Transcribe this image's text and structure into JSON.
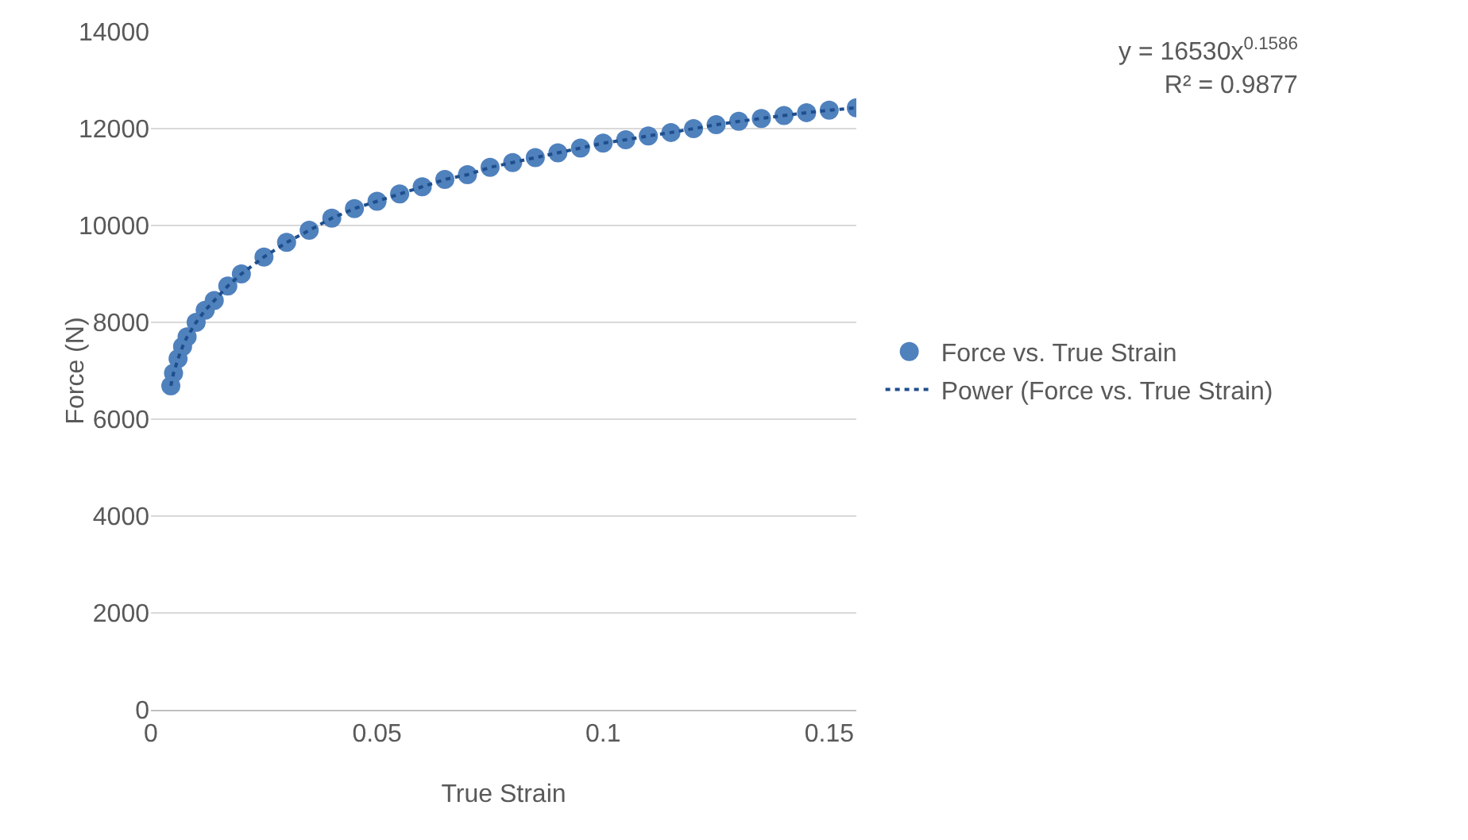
{
  "chart_data": {
    "type": "scatter",
    "xlabel": "True Strain",
    "ylabel": "Force (N)",
    "x": [
      0.0044,
      0.005,
      0.006,
      0.007,
      0.008,
      0.01,
      0.012,
      0.014,
      0.017,
      0.02,
      0.025,
      0.03,
      0.035,
      0.04,
      0.045,
      0.05,
      0.055,
      0.06,
      0.065,
      0.07,
      0.075,
      0.08,
      0.085,
      0.09,
      0.095,
      0.1,
      0.105,
      0.11,
      0.115,
      0.12,
      0.125,
      0.13,
      0.135,
      0.14,
      0.145,
      0.15,
      0.156
    ],
    "series": [
      {
        "name": "Force vs. True Strain",
        "color": "#4f81bd",
        "marker": "circle",
        "values": [
          6690,
          6950,
          7250,
          7500,
          7700,
          8000,
          8250,
          8450,
          8750,
          9000,
          9350,
          9650,
          9900,
          10150,
          10350,
          10500,
          10650,
          10800,
          10950,
          11050,
          11200,
          11300,
          11400,
          11500,
          11600,
          11700,
          11770,
          11850,
          11920,
          12000,
          12080,
          12150,
          12210,
          12270,
          12330,
          12380,
          12430
        ]
      },
      {
        "name": "Power (Force vs. True Strain)",
        "type": "line",
        "color": "#1f4e8c",
        "line_style": "dotted",
        "marker": "none",
        "values": [
          6690,
          6950,
          7250,
          7500,
          7700,
          8000,
          8250,
          8450,
          8750,
          9000,
          9350,
          9650,
          9900,
          10150,
          10350,
          10500,
          10650,
          10800,
          10950,
          11050,
          11200,
          11300,
          11400,
          11500,
          11600,
          11700,
          11770,
          11850,
          11920,
          12000,
          12080,
          12150,
          12210,
          12270,
          12330,
          12380,
          12430
        ]
      }
    ],
    "annotations": [
      "y = 16530x$^{0.1586}$",
      "R² = 0.9877"
    ],
    "xlim": [
      0,
      0.156
    ],
    "xticks": [
      0,
      0.05,
      0.1,
      0.15
    ],
    "ylim": [
      0,
      14000
    ],
    "yticks": [
      0,
      2000,
      4000,
      6000,
      8000,
      10000,
      12000,
      14000
    ],
    "grid": "y",
    "legend": "right"
  }
}
